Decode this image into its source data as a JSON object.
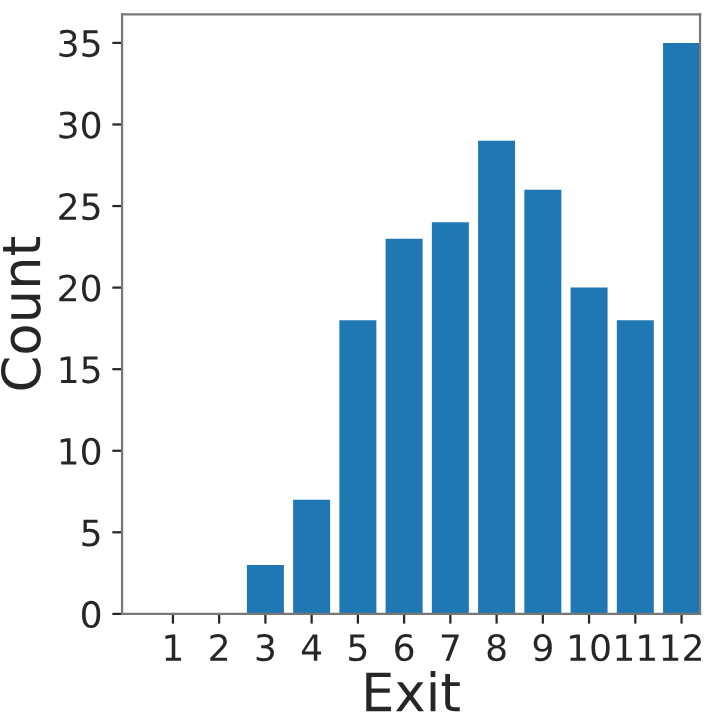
{
  "chart_data": {
    "type": "bar",
    "xlabel": "Exit",
    "ylabel": "Count",
    "categories": [
      "1",
      "2",
      "3",
      "4",
      "5",
      "6",
      "7",
      "8",
      "9",
      "10",
      "11",
      "12"
    ],
    "values": [
      0,
      0,
      3,
      7,
      18,
      23,
      24,
      29,
      26,
      20,
      18,
      35
    ],
    "color": "#1f77b4",
    "ylim": [
      0,
      36.75
    ],
    "yticks": [
      0,
      5,
      10,
      15,
      20,
      25,
      30,
      35
    ],
    "grid": false,
    "legend": false
  }
}
